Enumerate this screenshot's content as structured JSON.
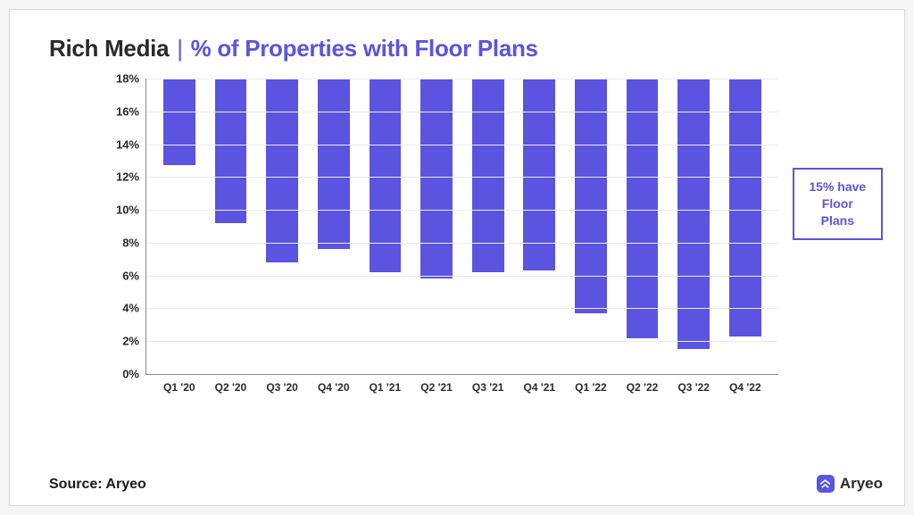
{
  "title": {
    "prefix": "Rich Media",
    "separator": "|",
    "sub": "% of Properties with Floor Plans",
    "prefix_color": "#2a2a2a",
    "sub_color": "#5b54e0",
    "fontsize": 26
  },
  "chart": {
    "type": "bar",
    "categories": [
      "Q1 '20",
      "Q2 '20",
      "Q3 '20",
      "Q4 '20",
      "Q1 '21",
      "Q2 '21",
      "Q3 '21",
      "Q4 '21",
      "Q1 '22",
      "Q2 '22",
      "Q3 '22",
      "Q4 '22"
    ],
    "values": [
      5.3,
      8.8,
      11.2,
      10.4,
      11.8,
      12.2,
      11.8,
      11.7,
      14.3,
      15.8,
      16.5,
      15.7
    ],
    "bar_color": "#5b54e0",
    "background_color": "#ffffff",
    "grid_color": "#ececec",
    "axis_color": "#888888",
    "bar_width": 0.62,
    "ylim": [
      0,
      18
    ],
    "ytick_step": 2,
    "ytick_labels": [
      "0%",
      "2%",
      "4%",
      "6%",
      "8%",
      "10%",
      "12%",
      "14%",
      "16%",
      "18%"
    ],
    "y_tick_fontsize": 13,
    "x_tick_fontsize": 12,
    "tick_fontweight": 700
  },
  "callout": {
    "line1": "15% have",
    "line2": "Floor Plans",
    "border_color": "#5b54e0",
    "text_color": "#5b54e0"
  },
  "footer": {
    "source_label": "Source: Aryeo",
    "brand_name": "Aryeo",
    "brand_color": "#5b54e0"
  }
}
